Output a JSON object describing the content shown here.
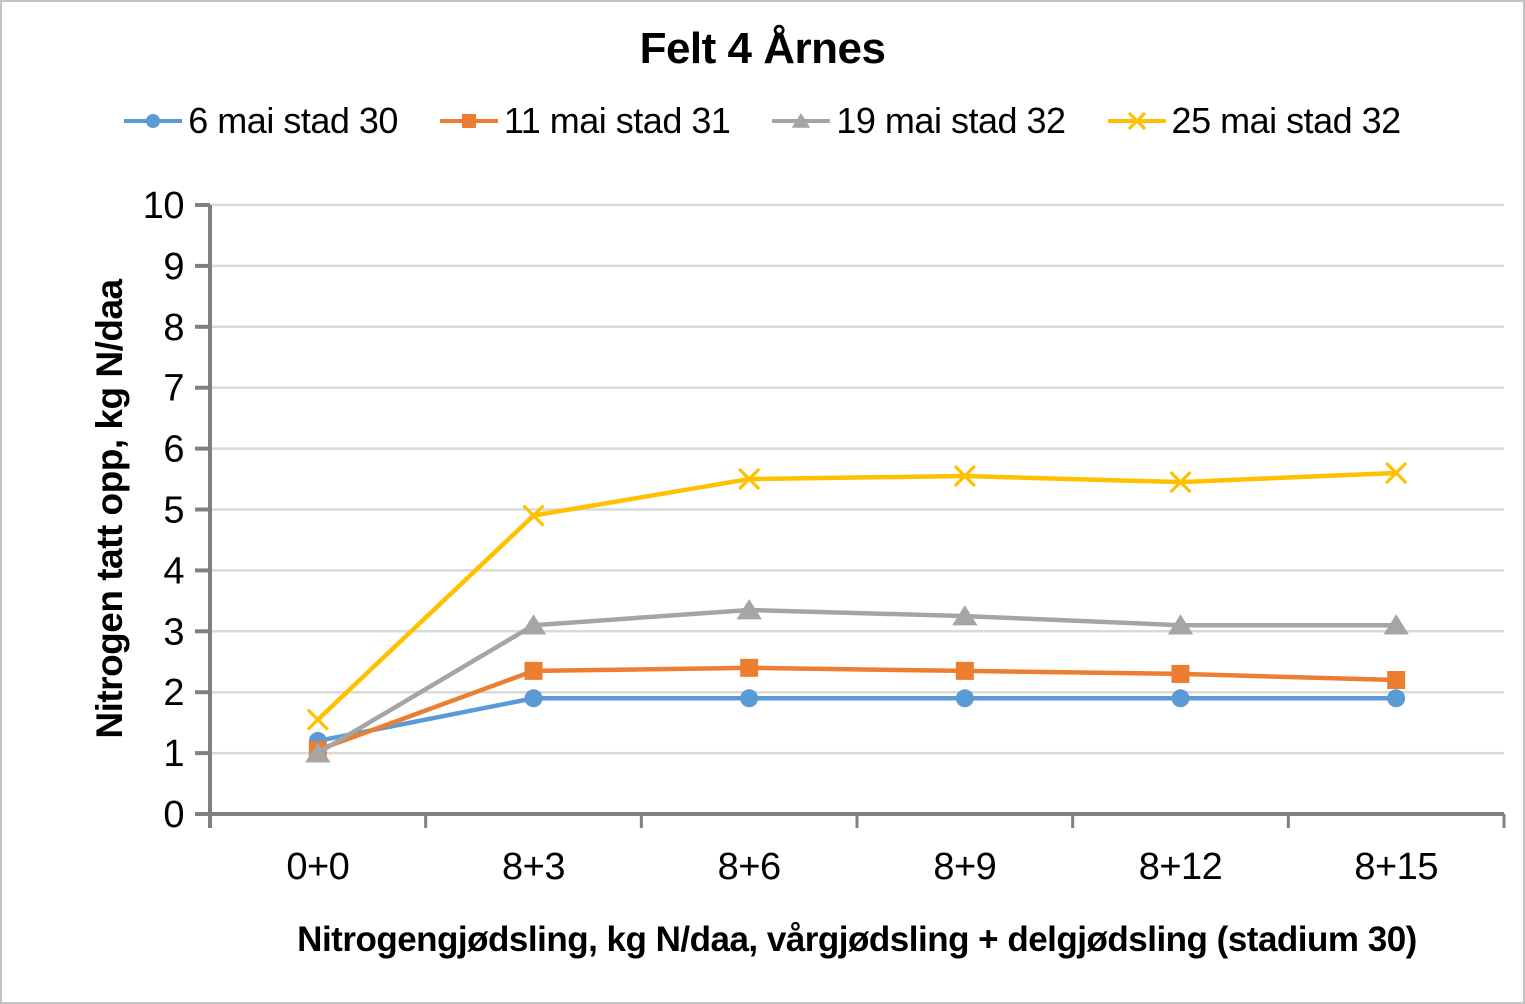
{
  "colors": {
    "axis": "#808080",
    "gridline": "#D9D9D9",
    "text": "#000000",
    "series_blue": "#5B9BD5",
    "series_orange": "#ED7D31",
    "series_gray": "#A5A5A5",
    "series_yellow": "#FFC000"
  },
  "chart_data": {
    "type": "line",
    "title": "Felt 4 Årnes",
    "xlabel": "Nitrogengjødsling, kg N/daa, vårgjødsling + delgjødsling (stadium 30)",
    "ylabel": "Nitrogen tatt opp, kg N/daa",
    "categories": [
      "0+0",
      "8+3",
      "8+6",
      "8+9",
      "8+12",
      "8+15"
    ],
    "series": [
      {
        "name": "6 mai stad 30",
        "color": "#5B9BD5",
        "marker": "circle",
        "values": [
          1.2,
          1.9,
          1.9,
          1.9,
          1.9,
          1.9
        ]
      },
      {
        "name": "11 mai stad 31",
        "color": "#ED7D31",
        "marker": "square",
        "values": [
          1.05,
          2.35,
          2.4,
          2.35,
          2.3,
          2.2
        ]
      },
      {
        "name": "19 mai stad 32",
        "color": "#A5A5A5",
        "marker": "triangle",
        "values": [
          1.0,
          3.1,
          3.35,
          3.25,
          3.1,
          3.1
        ]
      },
      {
        "name": "25 mai stad 32",
        "color": "#FFC000",
        "marker": "x",
        "values": [
          1.55,
          4.9,
          5.5,
          5.55,
          5.45,
          5.6
        ]
      }
    ],
    "ylim": [
      0,
      10
    ],
    "yticks": [
      0,
      1,
      2,
      3,
      4,
      5,
      6,
      7,
      8,
      9,
      10
    ],
    "grid": true,
    "legend_position": "top"
  }
}
